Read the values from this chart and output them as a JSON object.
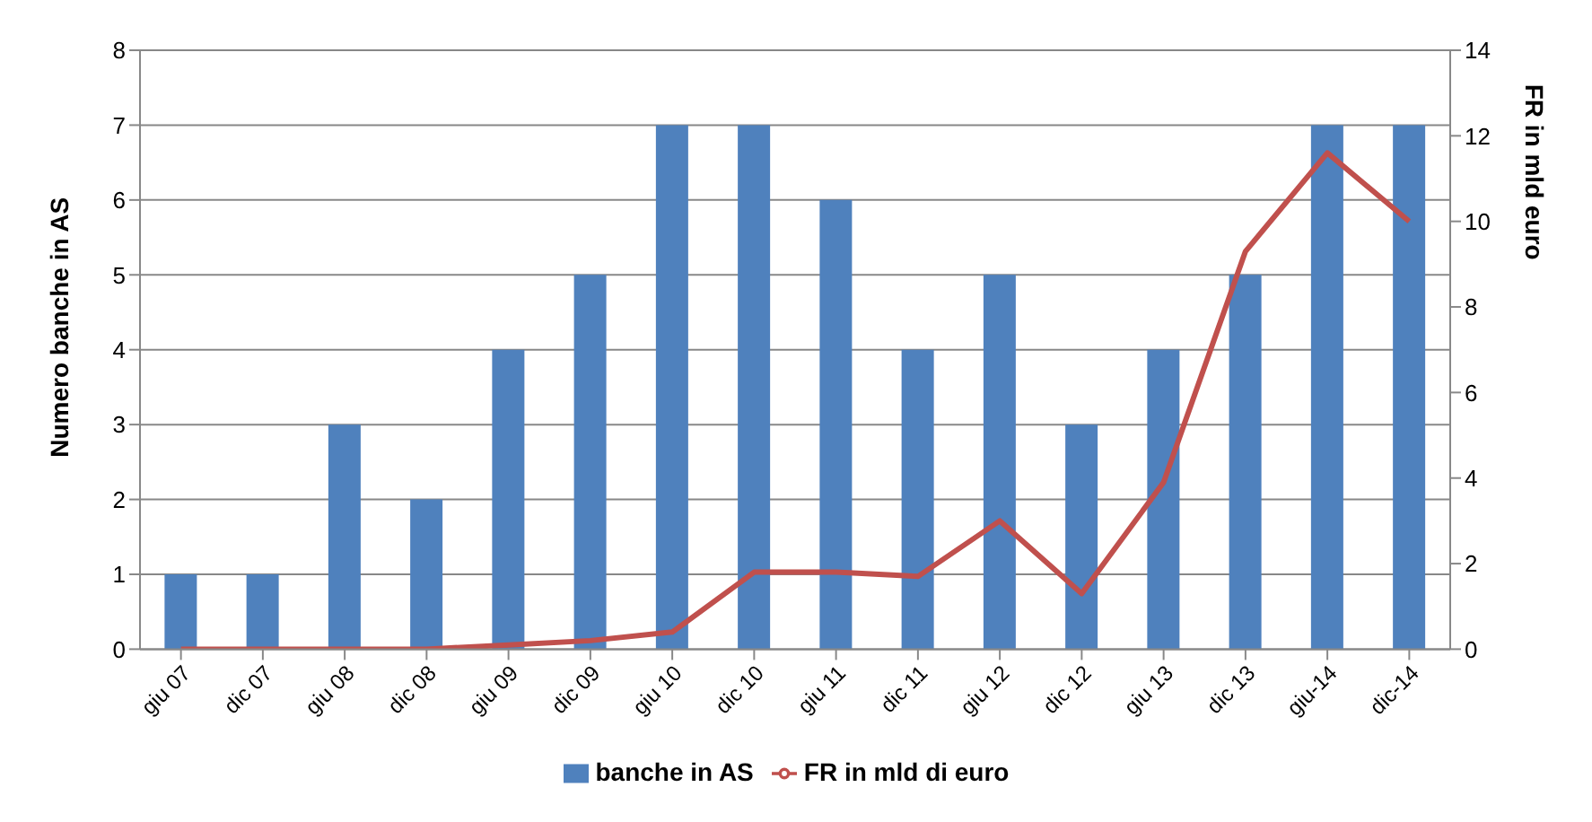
{
  "chart_data": {
    "type": "bar",
    "categories": [
      "giu 07",
      "dic 07",
      "giu 08",
      "dic 08",
      "giu 09",
      "dic 09",
      "giu 10",
      "dic 10",
      "giu 11",
      "dic 11",
      "giu 12",
      "dic 12",
      "giu 13",
      "dic 13",
      "giu-14",
      "dic-14"
    ],
    "ylabel": "Numero banche in AS",
    "y2label": "FR in mld euro",
    "series": [
      {
        "name": "banche in AS",
        "color": "#4f81bd",
        "values": [
          1,
          1,
          3,
          2,
          4,
          5,
          7,
          7,
          6,
          4,
          5,
          3,
          4,
          5,
          7,
          7
        ]
      },
      {
        "name": "FR in mld di euro",
        "type": "line",
        "axis": "y2",
        "color": "#c0504d",
        "values": [
          0,
          0,
          0,
          0,
          0.1,
          0.2,
          0.4,
          1.8,
          1.8,
          1.7,
          3.0,
          1.3,
          3.9,
          9.3,
          11.6,
          10.0
        ]
      }
    ],
    "ylim": [
      0,
      8
    ],
    "yticks": [
      0,
      1,
      2,
      3,
      4,
      5,
      6,
      7,
      8
    ],
    "y2lim": [
      0,
      14
    ],
    "y2ticks": [
      0,
      2,
      4,
      6,
      8,
      10,
      12,
      14
    ],
    "grid": "y",
    "legend": "bottom",
    "marker": "none"
  }
}
